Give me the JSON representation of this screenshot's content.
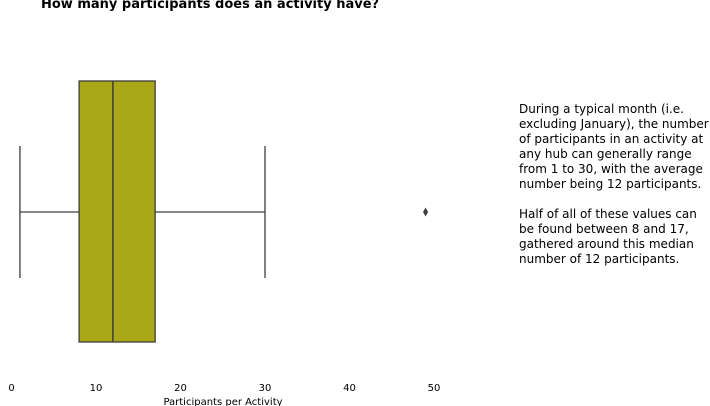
{
  "chart_data": {
    "type": "box",
    "title": "How many participants does an activity have?",
    "xlabel": "Participants per Activity",
    "ylabel": "",
    "xlim": [
      0,
      52
    ],
    "xticks": [
      0,
      10,
      20,
      30,
      40,
      50
    ],
    "box": {
      "whisker_low": 1,
      "q1": 8,
      "median": 12,
      "q3": 17,
      "whisker_high": 30,
      "outliers": [
        49
      ]
    },
    "box_color": "#aaa818",
    "line_color": "#3d3d3d",
    "grid": false,
    "legend": "none"
  },
  "annotation": {
    "paragraph1": "During a typical month (i.e. excluding January), the number of participants in an activity at any hub can generally range from 1 to 30, with the average number being 12 participants.",
    "paragraph2": "Half of all of these values can be found between 8 and 17, gathered around this median number of 12 participants."
  }
}
